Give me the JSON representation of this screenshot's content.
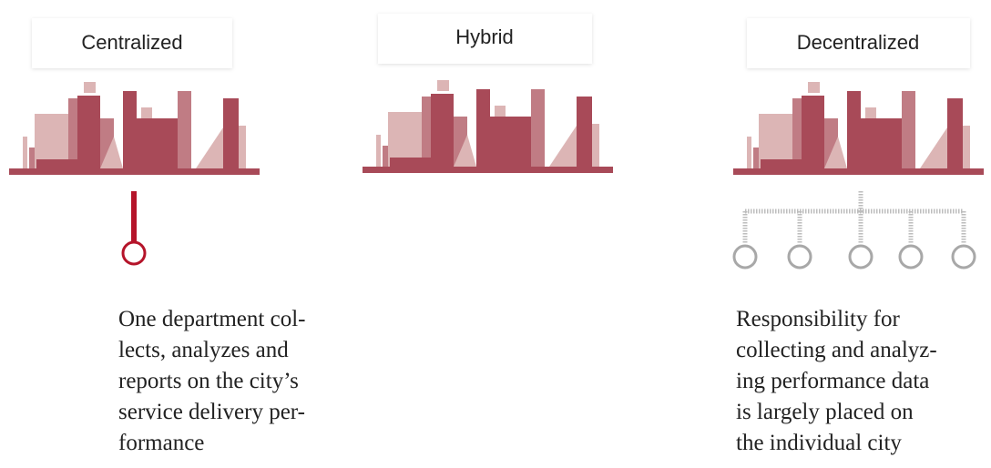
{
  "columns": [
    {
      "label": "Centralized",
      "description": [
        "One department col-",
        "lects, analyzes and",
        "reports on the city’s",
        "service delivery per-",
        "formance"
      ]
    },
    {
      "label": "Hybrid"
    },
    {
      "label": "Decentralized",
      "description": [
        "Responsibility for",
        "collecting and analyz-",
        "ing performance data",
        "is largely placed on",
        "the individual city"
      ]
    }
  ]
}
